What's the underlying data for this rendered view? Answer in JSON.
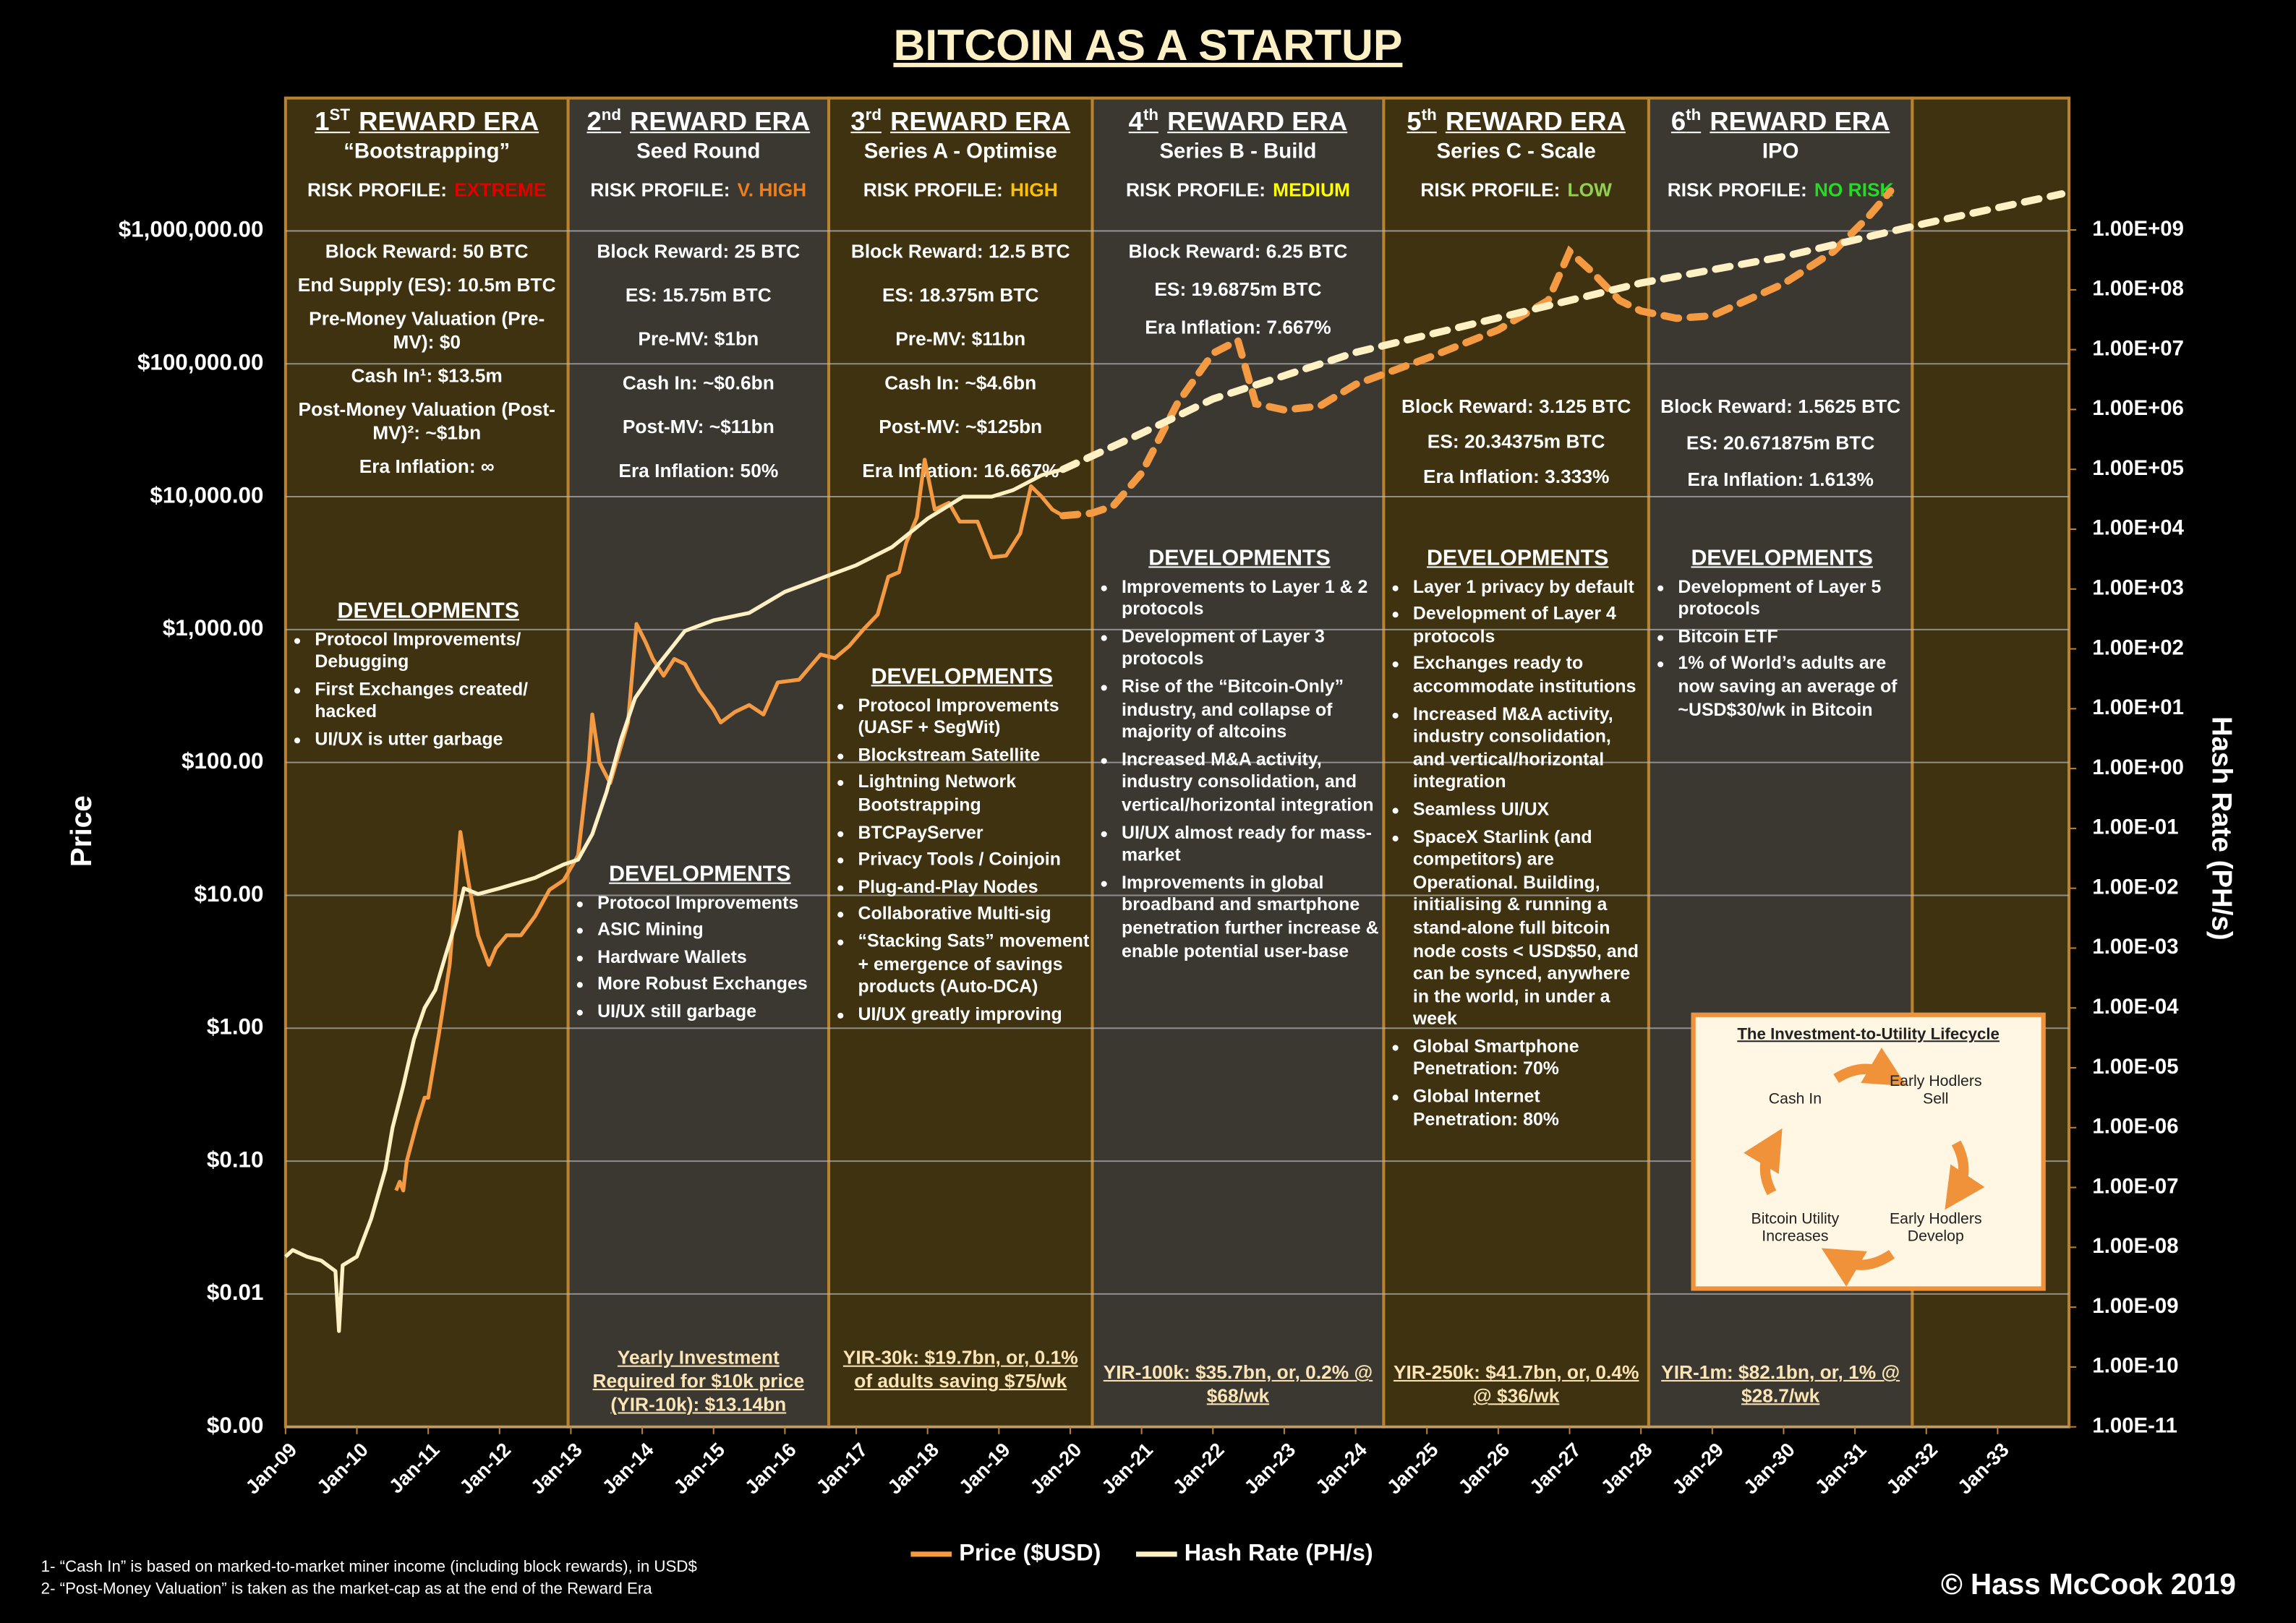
{
  "chart_data": {
    "type": "line",
    "title": "BITCOIN AS A STARTUP",
    "y_label": "Price",
    "y2_label": "Hash Rate (PH/s)",
    "log_y": true,
    "log_y2": true,
    "grid": true,
    "legend": "bottom",
    "xlim": [
      2009,
      2034
    ],
    "xticks": [
      {
        "value": 2009,
        "label": "Jan-09"
      },
      {
        "value": 2010,
        "label": "Jan-10"
      },
      {
        "value": 2011,
        "label": "Jan-11"
      },
      {
        "value": 2012,
        "label": "Jan-12"
      },
      {
        "value": 2013,
        "label": "Jan-13"
      },
      {
        "value": 2014,
        "label": "Jan-14"
      },
      {
        "value": 2015,
        "label": "Jan-15"
      },
      {
        "value": 2016,
        "label": "Jan-16"
      },
      {
        "value": 2017,
        "label": "Jan-17"
      },
      {
        "value": 2018,
        "label": "Jan-18"
      },
      {
        "value": 2019,
        "label": "Jan-19"
      },
      {
        "value": 2020,
        "label": "Jan-20"
      },
      {
        "value": 2021,
        "label": "Jan-21"
      },
      {
        "value": 2022,
        "label": "Jan-22"
      },
      {
        "value": 2023,
        "label": "Jan-23"
      },
      {
        "value": 2024,
        "label": "Jan-24"
      },
      {
        "value": 2025,
        "label": "Jan-25"
      },
      {
        "value": 2026,
        "label": "Jan-26"
      },
      {
        "value": 2027,
        "label": "Jan-27"
      },
      {
        "value": 2028,
        "label": "Jan-28"
      },
      {
        "value": 2029,
        "label": "Jan-29"
      },
      {
        "value": 2030,
        "label": "Jan-30"
      },
      {
        "value": 2031,
        "label": "Jan-31"
      },
      {
        "value": 2032,
        "label": "Jan-32"
      },
      {
        "value": 2033,
        "label": "Jan-33"
      }
    ],
    "ylim": [
      0.001,
      10000000
    ],
    "yticks": [
      {
        "value": 0.001,
        "label": "$0.00"
      },
      {
        "value": 0.01,
        "label": "$0.01"
      },
      {
        "value": 0.1,
        "label": "$0.10"
      },
      {
        "value": 1,
        "label": "$1.00"
      },
      {
        "value": 10,
        "label": "$10.00"
      },
      {
        "value": 100,
        "label": "$100.00"
      },
      {
        "value": 1000,
        "label": "$1,000.00"
      },
      {
        "value": 10000,
        "label": "$10,000.00"
      },
      {
        "value": 100000,
        "label": "$100,000.00"
      },
      {
        "value": 1000000,
        "label": "$1,000,000.00"
      }
    ],
    "y2lim": [
      1e-11,
      160000000000.0
    ],
    "y2ticks": [
      {
        "value": 1e-11,
        "label": "1.00E-11"
      },
      {
        "value": 1e-10,
        "label": "1.00E-10"
      },
      {
        "value": 1e-09,
        "label": "1.00E-09"
      },
      {
        "value": 1e-08,
        "label": "1.00E-08"
      },
      {
        "value": 1e-07,
        "label": "1.00E-07"
      },
      {
        "value": 1e-06,
        "label": "1.00E-06"
      },
      {
        "value": 1e-05,
        "label": "1.00E-05"
      },
      {
        "value": 0.0001,
        "label": "1.00E-04"
      },
      {
        "value": 0.001,
        "label": "1.00E-03"
      },
      {
        "value": 0.01,
        "label": "1.00E-02"
      },
      {
        "value": 0.1,
        "label": "1.00E-01"
      },
      {
        "value": 1,
        "label": "1.00E+00"
      },
      {
        "value": 10,
        "label": "1.00E+01"
      },
      {
        "value": 100,
        "label": "1.00E+02"
      },
      {
        "value": 1000,
        "label": "1.00E+03"
      },
      {
        "value": 10000,
        "label": "1.00E+04"
      },
      {
        "value": 100000,
        "label": "1.00E+05"
      },
      {
        "value": 1000000,
        "label": "1.00E+06"
      },
      {
        "value": 10000000,
        "label": "1.00E+07"
      },
      {
        "value": 100000000,
        "label": "1.00E+08"
      },
      {
        "value": 1000000000,
        "label": "1.00E+09"
      }
    ],
    "series": [
      {
        "name": "Price ($USD)",
        "color": "#f39a43",
        "x": [
          2010.55,
          2010.6,
          2010.65,
          2010.7,
          2010.85,
          2010.95,
          2011.0,
          2011.15,
          2011.3,
          2011.45,
          2011.55,
          2011.7,
          2011.85,
          2011.95,
          2012.1,
          2012.3,
          2012.5,
          2012.7,
          2012.9,
          2013.1,
          2013.25,
          2013.3,
          2013.4,
          2013.55,
          2013.8,
          2013.92,
          2014.05,
          2014.15,
          2014.3,
          2014.45,
          2014.6,
          2014.8,
          2015.0,
          2015.1,
          2015.3,
          2015.5,
          2015.7,
          2015.9,
          2016.2,
          2016.5,
          2016.7,
          2016.9,
          2017.1,
          2017.3,
          2017.45,
          2017.6,
          2017.7,
          2017.85,
          2017.96,
          2018.1,
          2018.3,
          2018.45,
          2018.7,
          2018.9,
          2019.1,
          2019.3,
          2019.45,
          2019.6,
          2019.75,
          2019.9
        ],
        "values": [
          0.06,
          0.07,
          0.06,
          0.1,
          0.2,
          0.3,
          0.3,
          0.9,
          3,
          30,
          14,
          5,
          3,
          4,
          5,
          5,
          7,
          11,
          13,
          20,
          100,
          230,
          100,
          70,
          200,
          1100,
          800,
          600,
          450,
          600,
          550,
          350,
          250,
          200,
          240,
          270,
          230,
          400,
          420,
          650,
          610,
          750,
          1000,
          1300,
          2500,
          2700,
          4500,
          7000,
          19000,
          8000,
          9000,
          6500,
          6500,
          3500,
          3600,
          5300,
          12000,
          10000,
          8000,
          7200
        ],
        "forecast": {
          "x": [
            2019.9,
            2020.3,
            2020.6,
            2021.0,
            2021.5,
            2022.0,
            2022.35,
            2022.6,
            2023.0,
            2023.5,
            2024.0,
            2025.0,
            2026.0,
            2026.7,
            2027.0,
            2027.3,
            2027.7,
            2028.0,
            2028.5,
            2029.0,
            2030.0,
            2030.7,
            2031.2,
            2031.5
          ],
          "values": [
            7200,
            7500,
            8500,
            15000,
            50000,
            120000,
            150000,
            50000,
            45000,
            48000,
            70000,
            110000,
            180000,
            300000,
            700000,
            500000,
            300000,
            250000,
            220000,
            230000,
            400000,
            700000,
            1300000,
            2000000
          ]
        }
      },
      {
        "name": "Hash Rate (PH/s)",
        "color": "#fff1c4",
        "axis": "y2",
        "x": [
          2009.0,
          2009.1,
          2009.3,
          2009.5,
          2009.7,
          2009.75,
          2009.8,
          2010.0,
          2010.2,
          2010.4,
          2010.5,
          2010.65,
          2010.8,
          2010.95,
          2011.1,
          2011.25,
          2011.4,
          2011.5,
          2011.7,
          2012.0,
          2012.5,
          2012.9,
          2013.1,
          2013.3,
          2013.5,
          2013.7,
          2013.9,
          2014.2,
          2014.6,
          2015.0,
          2015.5,
          2016.0,
          2016.5,
          2017.0,
          2017.5,
          2018.0,
          2018.5,
          2018.9,
          2019.2,
          2019.6,
          2019.9
        ],
        "values": [
          7e-09,
          9e-09,
          7e-09,
          6e-09,
          4e-09,
          4e-10,
          5e-09,
          7e-09,
          3e-08,
          2e-07,
          1e-06,
          5e-06,
          3e-05,
          0.0001,
          0.0002,
          0.0008,
          0.003,
          0.01,
          0.008,
          0.01,
          0.015,
          0.025,
          0.03,
          0.08,
          0.4,
          3,
          15,
          50,
          200,
          300,
          400,
          900,
          1500,
          2500,
          5000,
          15000,
          35000,
          35000,
          45000,
          80000,
          100000
        ],
        "forecast": {
          "x": [
            2019.9,
            2021.0,
            2022.0,
            2024.0,
            2026.0,
            2028.0,
            2030.0,
            2032.0,
            2033.9
          ],
          "values": [
            100000,
            400000,
            1500000,
            9000000,
            34000000,
            130000000,
            360000000,
            1300000000,
            4000000000
          ]
        }
      }
    ]
  },
  "eras": [
    {
      "ordinal": "1",
      "suffix": "ST",
      "title": "REWARD ERA",
      "subtitle": "“Bootstrapping”",
      "risk_label": "RISK PROFILE:",
      "risk": "EXTREME",
      "risk_color": "#e00000",
      "facts": [
        "Block Reward: 50 BTC",
        "End Supply (ES): 10.5m BTC",
        "Pre-Money Valuation (Pre-MV): $0",
        "Cash In¹: $13.5m",
        "Post-Money Valuation (Post-MV)²: ~$1bn",
        "Era Inflation: ∞"
      ],
      "developments_title": "DEVELOPMENTS",
      "developments": [
        "Protocol Improvements/ Debugging",
        "First Exchanges created/ hacked",
        "UI/UX is utter garbage"
      ]
    },
    {
      "ordinal": "2",
      "suffix": "nd",
      "title": "REWARD ERA",
      "subtitle": "Seed Round",
      "risk_label": "RISK PROFILE:",
      "risk": "V. HIGH",
      "risk_color": "#f07f1a",
      "facts": [
        "Block Reward: 25 BTC",
        "ES: 15.75m BTC",
        "Pre-MV: $1bn",
        "Cash In: ~$0.6bn",
        "Post-MV: ~$11bn",
        "Era Inflation: 50%"
      ],
      "developments_title": "DEVELOPMENTS",
      "developments": [
        "Protocol Improvements",
        "ASIC Mining",
        "Hardware Wallets",
        "More Robust Exchanges",
        "UI/UX still garbage"
      ],
      "yir": "Yearly Investment Required for $10k price (YIR-10k): $13.14bn"
    },
    {
      "ordinal": "3",
      "suffix": "rd",
      "title": "REWARD ERA",
      "subtitle": "Series A - Optimise",
      "risk_label": "RISK PROFILE:",
      "risk": "HIGH",
      "risk_color": "#ffc000",
      "facts": [
        "Block Reward: 12.5 BTC",
        "ES: 18.375m BTC",
        "Pre-MV: $11bn",
        "Cash In: ~$4.6bn",
        "Post-MV: ~$125bn",
        "Era Inflation: 16.667%"
      ],
      "developments_title": "DEVELOPMENTS",
      "developments": [
        "Protocol Improvements (UASF + SegWit)",
        "Blockstream Satellite",
        "Lightning Network Bootstrapping",
        "BTCPayServer",
        "Privacy Tools / Coinjoin",
        "Plug-and-Play Nodes",
        "Collaborative Multi-sig",
        "“Stacking Sats” movement + emergence of savings products (Auto-DCA)",
        "UI/UX greatly improving"
      ],
      "yir": "YIR-30k: $19.7bn, or, 0.1% of adults saving $75/wk"
    },
    {
      "ordinal": "4",
      "suffix": "th",
      "title": "REWARD ERA",
      "subtitle": "Series B - Build",
      "risk_label": "RISK PROFILE:",
      "risk": "MEDIUM",
      "risk_color": "#ffff00",
      "facts": [
        "Block Reward: 6.25 BTC",
        "ES: 19.6875m BTC",
        "Era Inflation: 7.667%"
      ],
      "developments_title": "DEVELOPMENTS",
      "developments": [
        "Improvements to Layer 1 & 2 protocols",
        "Development of Layer 3 protocols",
        "Rise of the “Bitcoin-Only” industry, and collapse of majority of altcoins",
        "Increased M&A activity, industry consolidation, and vertical/horizontal integration",
        "UI/UX almost ready for mass-market",
        "Improvements in global broadband and smartphone penetration further increase & enable potential user-base"
      ],
      "yir": "YIR-100k: $35.7bn, or, 0.2% @ $68/wk"
    },
    {
      "ordinal": "5",
      "suffix": "th",
      "title": "REWARD ERA",
      "subtitle": "Series C - Scale",
      "risk_label": "RISK PROFILE:",
      "risk": "LOW",
      "risk_color": "#92d050",
      "facts": [
        "Block Reward: 3.125 BTC",
        "ES: 20.34375m BTC",
        "Era Inflation: 3.333%"
      ],
      "developments_title": "DEVELOPMENTS",
      "developments": [
        "Layer 1 privacy by default",
        "Development of Layer 4 protocols",
        "Exchanges ready to accommodate institutions",
        "Increased M&A activity, industry consolidation, and vertical/horizontal integration",
        "Seamless UI/UX",
        "SpaceX Starlink (and competitors) are Operational. Building, initialising & running a stand-alone full bitcoin node costs < USD$50, and can be synced, anywhere in the world, in under a week",
        "Global Smartphone Penetration: 70%",
        "Global Internet Penetration: 80%"
      ],
      "yir": "YIR-250k: $41.7bn, or, 0.4% @ $36/wk"
    },
    {
      "ordinal": "6",
      "suffix": "th",
      "title": "REWARD ERA",
      "subtitle": "IPO",
      "risk_label": "RISK PROFILE:",
      "risk": "NO RISK",
      "risk_color": "#22dd22",
      "facts": [
        "Block Reward: 1.5625 BTC",
        "ES: 20.671875m BTC",
        "Era Inflation: 1.613%"
      ],
      "developments_title": "DEVELOPMENTS",
      "developments": [
        "Development of Layer 5 protocols",
        "Bitcoin ETF",
        "1% of World’s adults are now saving an average of ~USD$30/wk in Bitcoin"
      ],
      "yir": "YIR-1m: $82.1bn, or, 1% @ $28.7/wk"
    }
  ],
  "lifecycle": {
    "title": "The Investment-to-Utility Lifecycle",
    "stages": [
      "Cash In",
      "Early Hodlers Sell",
      "Early Hodlers Develop",
      "Bitcoin Utility Increases"
    ]
  },
  "footnotes": [
    "1- “Cash In” is based on marked-to-market miner income (including block rewards), in USD$",
    "2- “Post-Money Valuation” is taken as the market-cap as at the end of the Reward Era"
  ],
  "copyright": "© Hass McCook 2019"
}
